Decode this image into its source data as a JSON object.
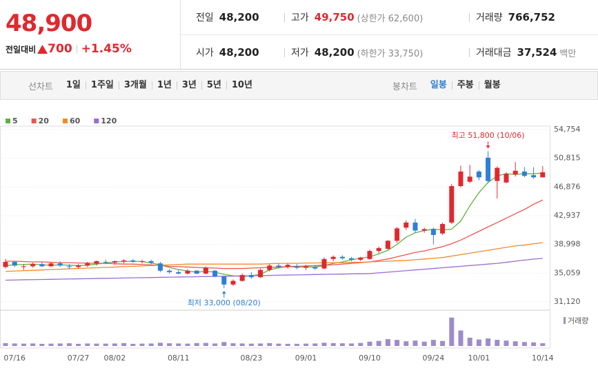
{
  "header": {
    "price": "48,900",
    "change_label": "전일대비",
    "change": "700",
    "change_rate": "+1.45%",
    "stats": [
      [
        {
          "label": "전일",
          "value": "48,200"
        },
        {
          "label": "고가",
          "value": "49,750",
          "note": "(상한가 62,600)",
          "color": "#e0282f"
        },
        {
          "label": "거래량",
          "value": "766,752"
        }
      ],
      [
        {
          "label": "시가",
          "value": "48,200"
        },
        {
          "label": "저가",
          "value": "48,200",
          "note": "(하한가 33,750)"
        },
        {
          "label": "거래대금",
          "value": "37,524",
          "note": "백만"
        }
      ]
    ]
  },
  "tabs": {
    "line_chart": {
      "label": "선차트",
      "options": [
        "1일",
        "1주일",
        "3개월",
        "1년",
        "3년",
        "5년",
        "10년"
      ]
    },
    "candle_chart": {
      "label": "봉차트",
      "options": [
        "일봉",
        "주봉",
        "월봉"
      ],
      "selected": 0
    }
  },
  "chart_data": {
    "type": "candlestick",
    "categories": [
      null,
      "07/16",
      null,
      null,
      null,
      null,
      null,
      null,
      "07/27",
      null,
      null,
      null,
      "08/02",
      null,
      null,
      null,
      null,
      null,
      null,
      "08/11",
      null,
      null,
      null,
      null,
      null,
      null,
      null,
      "08/23",
      null,
      null,
      null,
      null,
      null,
      "09/01",
      null,
      null,
      null,
      null,
      null,
      null,
      "09/10",
      null,
      null,
      null,
      null,
      null,
      null,
      "09/24",
      null,
      null,
      null,
      null,
      "10/01",
      null,
      null,
      null,
      null,
      null,
      null,
      "10/14"
    ],
    "open": [
      35900,
      36600,
      35900,
      36000,
      36300,
      36000,
      36400,
      36000,
      35900,
      36100,
      36400,
      36600,
      36500,
      36700,
      36800,
      36600,
      36700,
      36400,
      35400,
      35200,
      35000,
      35400,
      35000,
      35400,
      34600,
      33500,
      34000,
      34800,
      34500,
      35500,
      36100,
      35900,
      36000,
      35800,
      35900,
      35700,
      37000,
      37300,
      37100,
      36900,
      37000,
      38100,
      38400,
      39500,
      41300,
      42000,
      40900,
      41100,
      40500,
      42000,
      47000,
      47600,
      49000,
      50900,
      47700,
      47500,
      48600,
      49000,
      48500,
      48200
    ],
    "high": [
      37000,
      36700,
      36300,
      36500,
      36600,
      36600,
      36700,
      36300,
      36300,
      36600,
      36800,
      36900,
      36800,
      37000,
      37000,
      36900,
      36900,
      36600,
      35600,
      35500,
      35600,
      35500,
      36000,
      35500,
      34700,
      34200,
      35000,
      35200,
      35700,
      36300,
      36400,
      36400,
      36300,
      36200,
      36100,
      37200,
      37500,
      37500,
      37300,
      37300,
      38300,
      38700,
      39600,
      41400,
      42300,
      42500,
      41300,
      41300,
      42000,
      47300,
      49800,
      49900,
      49200,
      51800,
      49700,
      48900,
      50300,
      49600,
      49600,
      49750
    ],
    "low": [
      35700,
      35900,
      35500,
      35800,
      35900,
      35900,
      35900,
      35600,
      35700,
      35900,
      36100,
      36300,
      36200,
      36400,
      36500,
      36400,
      36300,
      35200,
      35000,
      34900,
      34900,
      34900,
      34900,
      34500,
      33000,
      33300,
      33900,
      34300,
      34400,
      35300,
      35700,
      35700,
      35600,
      35500,
      35500,
      35600,
      36700,
      36900,
      36700,
      36700,
      36900,
      37800,
      38300,
      39200,
      41000,
      40600,
      40600,
      39000,
      40300,
      41800,
      46800,
      47400,
      47800,
      47400,
      45300,
      47400,
      48300,
      48200,
      48000,
      48200
    ],
    "close": [
      36600,
      36100,
      36000,
      36300,
      36000,
      36400,
      36100,
      35900,
      36100,
      36400,
      36700,
      36500,
      36700,
      36800,
      36600,
      36700,
      36500,
      35400,
      35200,
      35000,
      35400,
      35000,
      35800,
      34600,
      33500,
      34000,
      34800,
      34500,
      35500,
      36100,
      35900,
      36200,
      35800,
      36000,
      35700,
      37000,
      37300,
      37100,
      36900,
      37200,
      38100,
      38500,
      39500,
      41200,
      42000,
      40900,
      41100,
      40300,
      41800,
      47000,
      49000,
      48300,
      48200,
      47700,
      49500,
      48700,
      49100,
      48400,
      48200,
      48900
    ],
    "up_color": "#e0282f",
    "down_color": "#2f7ed8",
    "series": [
      {
        "name": "5",
        "color": "#5cb33f",
        "values": [
          36100,
          36200,
          36250,
          36300,
          36200,
          36150,
          36200,
          36150,
          36100,
          36150,
          36300,
          36450,
          36600,
          36650,
          36700,
          36650,
          36450,
          36200,
          35850,
          35550,
          35350,
          35200,
          35300,
          35200,
          34900,
          34700,
          34600,
          34700,
          34900,
          35500,
          35800,
          35950,
          35900,
          35900,
          35900,
          36100,
          36400,
          36600,
          36900,
          37100,
          37300,
          37700,
          38200,
          39000,
          40000,
          40600,
          40900,
          41100,
          41000,
          41100,
          42200,
          44300,
          46100,
          47500,
          48400,
          48700,
          48600,
          48700,
          48700,
          48800
        ]
      },
      {
        "name": "20",
        "color": "#e9554f",
        "values": [
          36700,
          36700,
          36650,
          36600,
          36600,
          36550,
          36500,
          36500,
          36450,
          36450,
          36400,
          36400,
          36350,
          36300,
          36300,
          36250,
          36200,
          36100,
          36000,
          35950,
          35900,
          35850,
          35800,
          35750,
          35700,
          35700,
          35700,
          35750,
          35800,
          35850,
          35900,
          35950,
          36000,
          36050,
          36100,
          36150,
          36200,
          36300,
          36400,
          36500,
          36600,
          36800,
          37000,
          37300,
          37600,
          37900,
          38100,
          38400,
          38700,
          39100,
          39600,
          40200,
          40800,
          41400,
          42000,
          42600,
          43200,
          43800,
          44500,
          45100
        ]
      },
      {
        "name": "60",
        "color": "#f28a27",
        "values": [
          35300,
          35350,
          35400,
          35450,
          35500,
          35550,
          35600,
          35650,
          35700,
          35750,
          35800,
          35850,
          35900,
          35950,
          36000,
          36050,
          36100,
          36150,
          36200,
          36250,
          36300,
          36300,
          36300,
          36300,
          36300,
          36300,
          36300,
          36300,
          36300,
          36350,
          36400,
          36400,
          36400,
          36450,
          36450,
          36500,
          36500,
          36500,
          36550,
          36550,
          36600,
          36650,
          36700,
          36750,
          36800,
          36900,
          37000,
          37100,
          37200,
          37400,
          37600,
          37800,
          38000,
          38200,
          38400,
          38600,
          38800,
          38900,
          39100,
          39250
        ]
      },
      {
        "name": "120",
        "color": "#9b6bd1",
        "values": [
          34100,
          34120,
          34150,
          34170,
          34190,
          34210,
          34240,
          34260,
          34280,
          34300,
          34330,
          34350,
          34370,
          34390,
          34420,
          34440,
          34460,
          34480,
          34510,
          34530,
          34550,
          34570,
          34600,
          34620,
          34640,
          34660,
          34690,
          34710,
          34730,
          34750,
          34780,
          34800,
          34820,
          34840,
          34870,
          34890,
          34910,
          34930,
          34960,
          34980,
          35000,
          35100,
          35200,
          35300,
          35400,
          35500,
          35600,
          35700,
          35800,
          35900,
          36000,
          36100,
          36200,
          36300,
          36400,
          36550,
          36700,
          36850,
          36980,
          37100
        ]
      }
    ],
    "ylim": [
      31120,
      54754
    ],
    "yticks": [
      {
        "value": 54754,
        "label": "54,754"
      },
      {
        "value": 50815,
        "label": "50,815"
      },
      {
        "value": 46876,
        "label": "46,876"
      },
      {
        "value": 42937,
        "label": "42,937"
      },
      {
        "value": 38998,
        "label": "38,998"
      },
      {
        "value": 35059,
        "label": "35,059"
      },
      {
        "value": 31120,
        "label": "31,120"
      }
    ],
    "grid": true,
    "annotations": [
      {
        "text": "최고 51,800 (10/06)",
        "kind": "high",
        "color": "#e0282f"
      },
      {
        "text": "최저 33,000 (08/20)",
        "kind": "low",
        "color": "#2f7ed8"
      }
    ],
    "volume": {
      "label": "거래량",
      "color": "#9e8cc8",
      "ylim": [
        0,
        9000000
      ],
      "values": [
        800000,
        700000,
        650000,
        700000,
        600000,
        650000,
        700000,
        750000,
        600000,
        700000,
        650000,
        650000,
        700000,
        800000,
        600000,
        650000,
        700000,
        900000,
        750000,
        700000,
        650000,
        800000,
        850000,
        700000,
        1100000,
        750000,
        700000,
        650000,
        700000,
        800000,
        650000,
        600000,
        600000,
        650000,
        700000,
        900000,
        800000,
        750000,
        700000,
        850000,
        1200000,
        1400000,
        1900000,
        1700000,
        1300000,
        1500000,
        1200000,
        1700000,
        1400000,
        7900000,
        4300000,
        2300000,
        1800000,
        2100000,
        1700000,
        1500000,
        1300000,
        1100000,
        1000000,
        766752
      ]
    }
  }
}
